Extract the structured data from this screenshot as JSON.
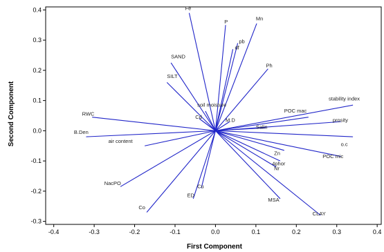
{
  "chart_data": {
    "type": "scatter",
    "subtype": "biplot-loading-vectors",
    "xlabel": "First Component",
    "ylabel": "Second Component",
    "xlim": [
      -0.42,
      0.41
    ],
    "ylim": [
      -0.31,
      0.41
    ],
    "xticks": [
      -0.4,
      -0.3,
      -0.2,
      -0.1,
      0.0,
      0.1,
      0.2,
      0.3,
      0.4
    ],
    "xtick_labels": [
      "-0.4",
      "-0.3",
      "-0.2",
      "-0.1",
      "0.0",
      "0.1",
      "0.2",
      "0.3",
      "0.4"
    ],
    "yticks": [
      -0.3,
      -0.2,
      -0.1,
      0.0,
      0.1,
      0.2,
      0.3,
      0.4
    ],
    "ytick_labels": [
      "-0.3",
      "-0.2",
      "-0.1",
      "0.0",
      "0.1",
      "0.2",
      "0.3",
      "0.4"
    ],
    "grid": false,
    "vector_color": "#1f24c8",
    "vectors": [
      {
        "label": "Fe",
        "x": -0.065,
        "y": 0.39,
        "lx": -0.075,
        "ly": 0.4
      },
      {
        "label": "P",
        "x": 0.025,
        "y": 0.35,
        "lx": 0.022,
        "ly": 0.355
      },
      {
        "label": "Mn",
        "x": 0.102,
        "y": 0.355,
        "lx": 0.1,
        "ly": 0.365
      },
      {
        "label": "pb",
        "x": 0.055,
        "y": 0.29,
        "lx": 0.058,
        "ly": 0.29
      },
      {
        "label": "df",
        "x": 0.043,
        "y": 0.27,
        "lx": 0.048,
        "ly": 0.27
      },
      {
        "label": "Ph",
        "x": 0.13,
        "y": 0.205,
        "lx": 0.125,
        "ly": 0.21
      },
      {
        "label": "SAND",
        "x": -0.11,
        "y": 0.225,
        "lx": -0.11,
        "ly": 0.24
      },
      {
        "label": "SILT",
        "x": -0.12,
        "y": 0.16,
        "lx": -0.12,
        "ly": 0.175
      },
      {
        "label": "soil moisture",
        "x": -0.025,
        "y": 0.065,
        "lx": -0.045,
        "ly": 0.08
      },
      {
        "label": "Cd",
        "x": -0.04,
        "y": 0.04,
        "lx": -0.05,
        "ly": 0.04
      },
      {
        "label": "M.D",
        "x": 0.035,
        "y": 0.03,
        "lx": 0.025,
        "ly": 0.03
      },
      {
        "label": "POC mac",
        "x": 0.23,
        "y": 0.045,
        "lx": 0.17,
        "ly": 0.06
      },
      {
        "label": "stability index",
        "x": 0.34,
        "y": 0.085,
        "lx": 0.28,
        "ly": 0.1
      },
      {
        "label": "prosity",
        "x": 0.31,
        "y": 0.03,
        "lx": 0.29,
        "ly": 0.03
      },
      {
        "label": "o.c",
        "x": 0.34,
        "y": -0.02,
        "lx": 0.31,
        "ly": -0.05
      },
      {
        "label": "POC mic",
        "x": 0.31,
        "y": -0.085,
        "lx": 0.265,
        "ly": -0.09
      },
      {
        "label": "Salin",
        "x": 0.125,
        "y": 0.01,
        "lx": 0.1,
        "ly": 0.007
      },
      {
        "label": "Zn",
        "x": 0.17,
        "y": -0.065,
        "lx": 0.145,
        "ly": -0.08
      },
      {
        "label": "4phor",
        "x": 0.16,
        "y": -0.1,
        "lx": 0.14,
        "ly": -0.115
      },
      {
        "label": "Nr",
        "x": 0.15,
        "y": -0.12,
        "lx": 0.145,
        "ly": -0.13
      },
      {
        "label": "MSA",
        "x": 0.16,
        "y": -0.225,
        "lx": 0.13,
        "ly": -0.235
      },
      {
        "label": "CLAY",
        "x": 0.26,
        "y": -0.28,
        "lx": 0.24,
        "ly": -0.28
      },
      {
        "label": "RWC",
        "x": -0.305,
        "y": 0.045,
        "lx": -0.33,
        "ly": 0.05
      },
      {
        "label": "B.Den",
        "x": -0.32,
        "y": -0.02,
        "lx": -0.35,
        "ly": -0.01
      },
      {
        "label": "air content",
        "x": -0.175,
        "y": -0.05,
        "lx": -0.265,
        "ly": -0.04
      },
      {
        "label": "NacPO",
        "x": -0.235,
        "y": -0.185,
        "lx": -0.275,
        "ly": -0.18
      },
      {
        "label": "Cu",
        "x": -0.035,
        "y": -0.19,
        "lx": -0.045,
        "ly": -0.19
      },
      {
        "label": "ED",
        "x": -0.055,
        "y": -0.225,
        "lx": -0.07,
        "ly": -0.22
      },
      {
        "label": "Co",
        "x": -0.17,
        "y": -0.27,
        "lx": -0.19,
        "ly": -0.26
      }
    ]
  }
}
